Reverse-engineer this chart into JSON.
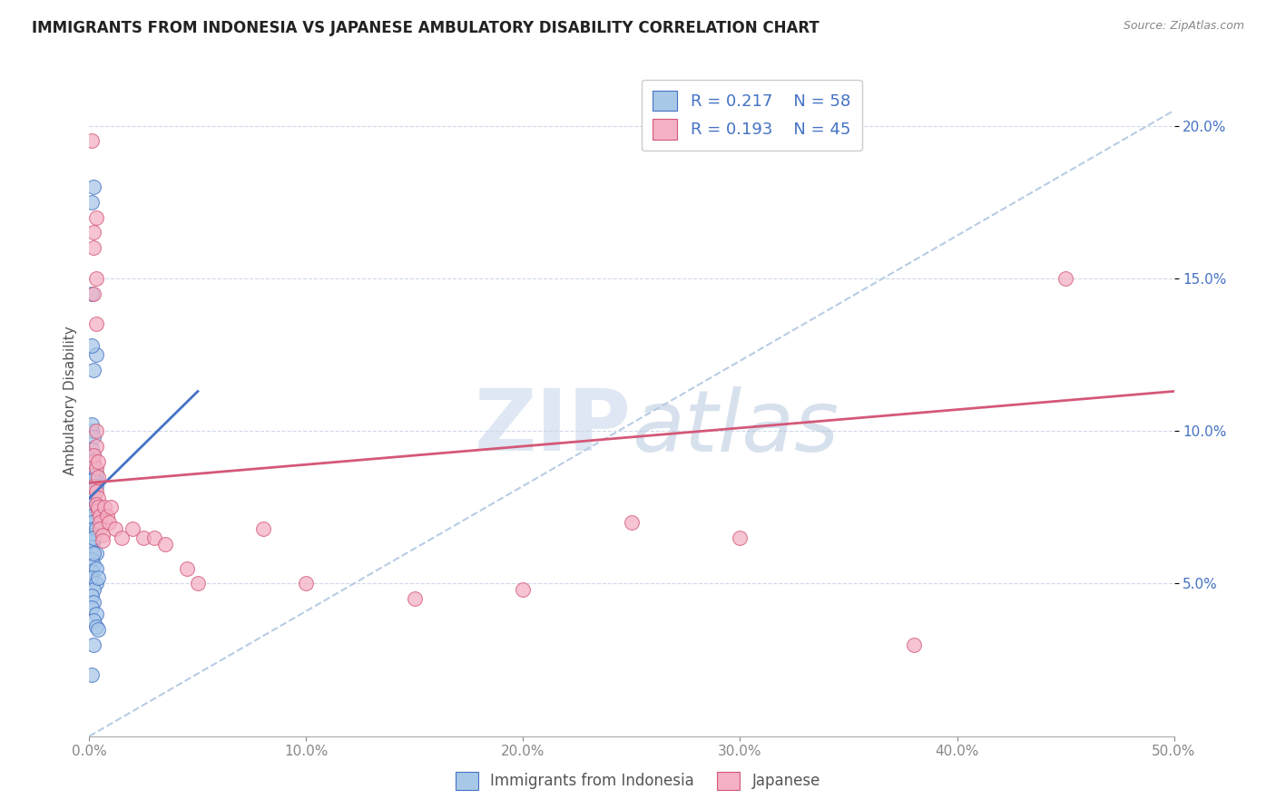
{
  "title": "IMMIGRANTS FROM INDONESIA VS JAPANESE AMBULATORY DISABILITY CORRELATION CHART",
  "source": "Source: ZipAtlas.com",
  "xlabel": "",
  "ylabel": "Ambulatory Disability",
  "xlim": [
    0.0,
    0.5
  ],
  "ylim": [
    0.0,
    0.22
  ],
  "xticks": [
    0.0,
    0.1,
    0.2,
    0.3,
    0.4,
    0.5
  ],
  "yticks": [
    0.05,
    0.1,
    0.15,
    0.2
  ],
  "series1_label": "Immigrants from Indonesia",
  "series1_R": "0.217",
  "series1_N": "58",
  "series1_color": "#a8c8e8",
  "series1_line_color": "#4472c4",
  "series2_label": "Japanese",
  "series2_R": "0.193",
  "series2_N": "45",
  "series2_color": "#f4b0c4",
  "series2_line_color": "#d45878",
  "diagonal_color": "#b8cce4",
  "watermark_zip": "ZIP",
  "watermark_atlas": "atlas",
  "scatter1_x": [
    0.001,
    0.002,
    0.001,
    0.003,
    0.001,
    0.002,
    0.001,
    0.001,
    0.002,
    0.001,
    0.001,
    0.002,
    0.001,
    0.002,
    0.001,
    0.003,
    0.001,
    0.002,
    0.003,
    0.002,
    0.001,
    0.002,
    0.003,
    0.001,
    0.002,
    0.001,
    0.002,
    0.001,
    0.003,
    0.002,
    0.001,
    0.001,
    0.002,
    0.001,
    0.002,
    0.002,
    0.003,
    0.001,
    0.003,
    0.002,
    0.001,
    0.002,
    0.001,
    0.003,
    0.002,
    0.001,
    0.003,
    0.002,
    0.001,
    0.004,
    0.002,
    0.001,
    0.003,
    0.002,
    0.003,
    0.004,
    0.002,
    0.001
  ],
  "scatter1_y": [
    0.175,
    0.18,
    0.145,
    0.125,
    0.128,
    0.12,
    0.1,
    0.102,
    0.098,
    0.094,
    0.09,
    0.092,
    0.088,
    0.086,
    0.082,
    0.084,
    0.09,
    0.088,
    0.086,
    0.084,
    0.08,
    0.078,
    0.082,
    0.075,
    0.076,
    0.074,
    0.078,
    0.072,
    0.076,
    0.074,
    0.072,
    0.07,
    0.068,
    0.066,
    0.064,
    0.065,
    0.068,
    0.062,
    0.06,
    0.065,
    0.058,
    0.056,
    0.054,
    0.055,
    0.06,
    0.052,
    0.05,
    0.048,
    0.046,
    0.052,
    0.044,
    0.042,
    0.04,
    0.038,
    0.036,
    0.035,
    0.03,
    0.02
  ],
  "scatter2_x": [
    0.001,
    0.003,
    0.002,
    0.003,
    0.002,
    0.003,
    0.002,
    0.003,
    0.002,
    0.003,
    0.002,
    0.003,
    0.002,
    0.003,
    0.004,
    0.004,
    0.003,
    0.004,
    0.004,
    0.004,
    0.005,
    0.005,
    0.005,
    0.006,
    0.006,
    0.007,
    0.008,
    0.009,
    0.01,
    0.012,
    0.015,
    0.02,
    0.025,
    0.03,
    0.035,
    0.045,
    0.05,
    0.08,
    0.1,
    0.15,
    0.2,
    0.25,
    0.3,
    0.38,
    0.45
  ],
  "scatter2_y": [
    0.195,
    0.17,
    0.165,
    0.135,
    0.145,
    0.15,
    0.16,
    0.095,
    0.09,
    0.1,
    0.082,
    0.088,
    0.092,
    0.08,
    0.085,
    0.078,
    0.076,
    0.074,
    0.075,
    0.09,
    0.072,
    0.07,
    0.068,
    0.066,
    0.064,
    0.075,
    0.072,
    0.07,
    0.075,
    0.068,
    0.065,
    0.068,
    0.065,
    0.065,
    0.063,
    0.055,
    0.05,
    0.068,
    0.05,
    0.045,
    0.048,
    0.07,
    0.065,
    0.03,
    0.15
  ],
  "line1_x0": 0.0,
  "line1_x1": 0.05,
  "line1_y0": 0.078,
  "line1_y1": 0.113,
  "line2_x0": 0.0,
  "line2_x1": 0.5,
  "line2_y0": 0.083,
  "line2_y1": 0.113
}
